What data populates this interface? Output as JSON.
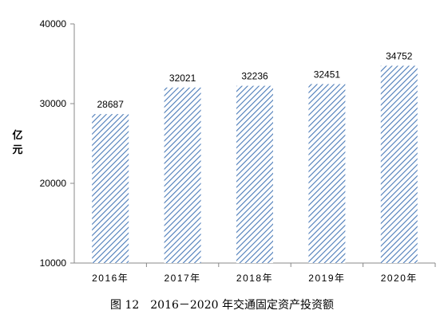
{
  "caption": "图 12　2016－2020 年交通固定资产投资额",
  "chart_data": {
    "type": "bar",
    "categories": [
      "2016年",
      "2017年",
      "2018年",
      "2019年",
      "2020年"
    ],
    "values": [
      28687,
      32021,
      32236,
      32451,
      34752
    ],
    "data_labels": [
      "28687",
      "32021",
      "32236",
      "32451",
      "34752"
    ],
    "ylabel": "亿元",
    "ylim": [
      10000,
      40000
    ],
    "yticks": [
      "10000",
      "20000",
      "30000",
      "40000"
    ],
    "grid": false,
    "legend": "none",
    "bar_fill": "hatched",
    "bar_color": "#4a7ab8"
  }
}
